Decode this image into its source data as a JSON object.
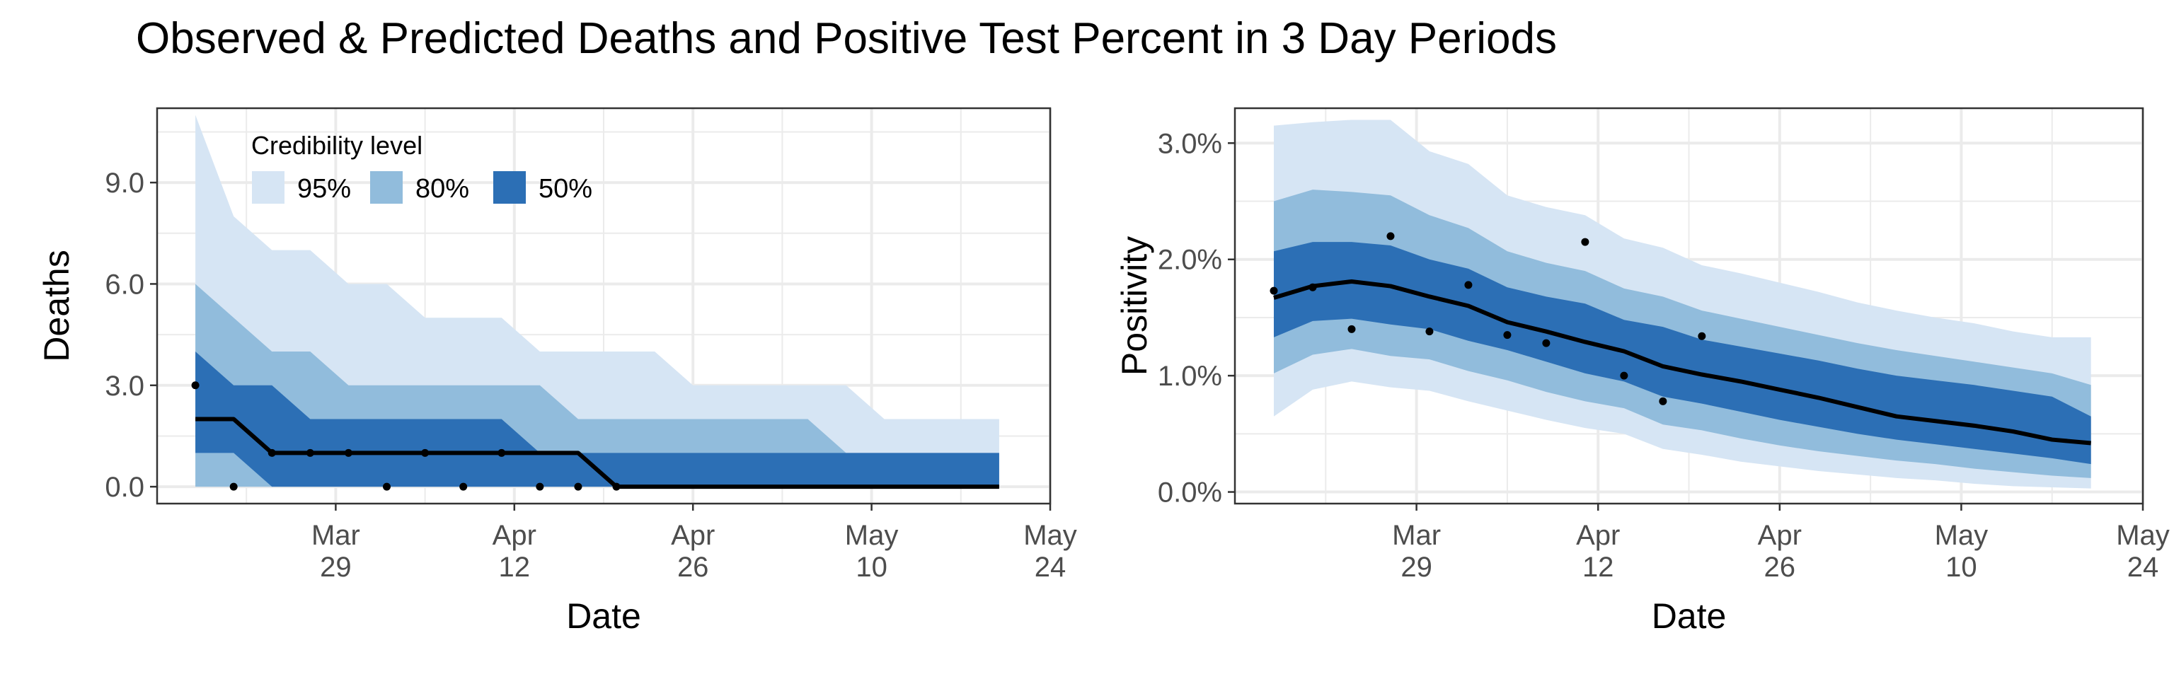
{
  "title": "Observed & Predicted Deaths and Positive Test Percent in 3 Day Periods",
  "colors": {
    "band95": "#d6e5f4",
    "band80": "#91bcdc",
    "band50": "#2c6fb5",
    "line": "#000000",
    "grid": "#ebebeb",
    "panel_border": "#333333"
  },
  "chart_data": [
    {
      "type": "area",
      "panel": "left",
      "xlabel": "Date",
      "ylabel": "Deaths",
      "xlim": [
        "2020-03-15",
        "2020-05-24"
      ],
      "ylim": [
        -0.5,
        11.2
      ],
      "grid": true,
      "x_ticks": [
        {
          "date": "2020-03-29",
          "line1": "Mar",
          "line2": "29"
        },
        {
          "date": "2020-04-12",
          "line1": "Apr",
          "line2": "12"
        },
        {
          "date": "2020-04-26",
          "line1": "Apr",
          "line2": "26"
        },
        {
          "date": "2020-05-10",
          "line1": "May",
          "line2": "10"
        },
        {
          "date": "2020-05-24",
          "line1": "May",
          "line2": "24"
        }
      ],
      "y_ticks": [
        {
          "value": 0,
          "label": "0.0"
        },
        {
          "value": 3,
          "label": "3.0"
        },
        {
          "value": 6,
          "label": "6.0"
        },
        {
          "value": 9,
          "label": "9.0"
        }
      ],
      "legend": {
        "title": "Credibility level",
        "placement": "top-left",
        "items": [
          {
            "label": "95%",
            "color": "#d6e5f4"
          },
          {
            "label": "80%",
            "color": "#91bcdc"
          },
          {
            "label": "50%",
            "color": "#2c6fb5"
          }
        ]
      },
      "x": [
        "2020-03-18",
        "2020-03-21",
        "2020-03-24",
        "2020-03-27",
        "2020-03-30",
        "2020-04-02",
        "2020-04-05",
        "2020-04-08",
        "2020-04-11",
        "2020-04-14",
        "2020-04-17",
        "2020-04-20",
        "2020-04-23",
        "2020-04-26",
        "2020-04-29",
        "2020-05-02",
        "2020-05-05",
        "2020-05-08",
        "2020-05-11",
        "2020-05-14",
        "2020-05-17",
        "2020-05-20"
      ],
      "bands": [
        {
          "level": "95%",
          "lower": [
            0,
            0,
            0,
            0,
            0,
            0,
            0,
            0,
            0,
            0,
            0,
            0,
            0,
            0,
            0,
            0,
            0,
            0,
            0,
            0,
            0,
            0
          ],
          "upper": [
            11,
            8,
            7,
            7,
            6,
            6,
            5,
            5,
            5,
            4,
            4,
            4,
            4,
            3,
            3,
            3,
            3,
            3,
            2,
            2,
            2,
            2
          ]
        },
        {
          "level": "80%",
          "lower": [
            0,
            0,
            0,
            0,
            0,
            0,
            0,
            0,
            0,
            0,
            0,
            0,
            0,
            0,
            0,
            0,
            0,
            0,
            0,
            0,
            0,
            0
          ],
          "upper": [
            6,
            5,
            4,
            4,
            3,
            3,
            3,
            3,
            3,
            3,
            2,
            2,
            2,
            2,
            2,
            2,
            2,
            1,
            1,
            1,
            1,
            1
          ]
        },
        {
          "level": "50%",
          "lower": [
            1,
            1,
            0,
            0,
            0,
            0,
            0,
            0,
            0,
            0,
            0,
            0,
            0,
            0,
            0,
            0,
            0,
            0,
            0,
            0,
            0,
            0
          ],
          "upper": [
            4,
            3,
            3,
            2,
            2,
            2,
            2,
            2,
            2,
            1,
            1,
            1,
            1,
            1,
            1,
            1,
            1,
            1,
            1,
            1,
            1,
            1
          ]
        }
      ],
      "median": [
        2,
        2,
        1,
        1,
        1,
        1,
        1,
        1,
        1,
        1,
        1,
        0,
        0,
        0,
        0,
        0,
        0,
        0,
        0,
        0,
        0,
        0
      ],
      "observed": [
        {
          "x": "2020-03-18",
          "y": 3
        },
        {
          "x": "2020-03-21",
          "y": 0
        },
        {
          "x": "2020-03-24",
          "y": 1
        },
        {
          "x": "2020-03-27",
          "y": 1
        },
        {
          "x": "2020-03-30",
          "y": 1
        },
        {
          "x": "2020-04-02",
          "y": 0
        },
        {
          "x": "2020-04-05",
          "y": 1
        },
        {
          "x": "2020-04-08",
          "y": 0
        },
        {
          "x": "2020-04-11",
          "y": 1
        },
        {
          "x": "2020-04-14",
          "y": 0
        },
        {
          "x": "2020-04-17",
          "y": 0
        },
        {
          "x": "2020-04-20",
          "y": 0
        }
      ]
    },
    {
      "type": "area",
      "panel": "right",
      "xlabel": "Date",
      "ylabel": "Positivity",
      "xlim": [
        "2020-03-15",
        "2020-05-24"
      ],
      "ylim": [
        -0.1,
        3.3
      ],
      "grid": true,
      "x_ticks": [
        {
          "date": "2020-03-29",
          "line1": "Mar",
          "line2": "29"
        },
        {
          "date": "2020-04-12",
          "line1": "Apr",
          "line2": "12"
        },
        {
          "date": "2020-04-26",
          "line1": "Apr",
          "line2": "26"
        },
        {
          "date": "2020-05-10",
          "line1": "May",
          "line2": "10"
        },
        {
          "date": "2020-05-24",
          "line1": "May",
          "line2": "24"
        }
      ],
      "y_ticks": [
        {
          "value": 0,
          "label": "0.0%"
        },
        {
          "value": 1,
          "label": "1.0%"
        },
        {
          "value": 2,
          "label": "2.0%"
        },
        {
          "value": 3,
          "label": "3.0%"
        }
      ],
      "x": [
        "2020-03-18",
        "2020-03-21",
        "2020-03-24",
        "2020-03-27",
        "2020-03-30",
        "2020-04-02",
        "2020-04-05",
        "2020-04-08",
        "2020-04-11",
        "2020-04-14",
        "2020-04-17",
        "2020-04-20",
        "2020-04-23",
        "2020-04-26",
        "2020-04-29",
        "2020-05-02",
        "2020-05-05",
        "2020-05-08",
        "2020-05-11",
        "2020-05-14",
        "2020-05-17",
        "2020-05-20"
      ],
      "bands": [
        {
          "level": "95%",
          "lower": [
            0.65,
            0.88,
            0.95,
            0.9,
            0.87,
            0.78,
            0.7,
            0.62,
            0.55,
            0.5,
            0.37,
            0.32,
            0.26,
            0.22,
            0.18,
            0.15,
            0.12,
            0.1,
            0.07,
            0.05,
            0.04,
            0.03
          ],
          "upper": [
            3.15,
            3.18,
            3.2,
            3.2,
            2.93,
            2.82,
            2.55,
            2.45,
            2.38,
            2.18,
            2.1,
            1.95,
            1.88,
            1.8,
            1.72,
            1.63,
            1.56,
            1.5,
            1.45,
            1.38,
            1.33,
            1.33
          ]
        },
        {
          "level": "80%",
          "lower": [
            1.02,
            1.18,
            1.23,
            1.17,
            1.14,
            1.04,
            0.96,
            0.86,
            0.78,
            0.72,
            0.58,
            0.53,
            0.46,
            0.4,
            0.35,
            0.31,
            0.27,
            0.24,
            0.2,
            0.17,
            0.14,
            0.12
          ],
          "upper": [
            2.5,
            2.6,
            2.58,
            2.55,
            2.38,
            2.27,
            2.07,
            1.97,
            1.9,
            1.75,
            1.68,
            1.56,
            1.49,
            1.42,
            1.35,
            1.28,
            1.22,
            1.17,
            1.12,
            1.07,
            1.02,
            0.92
          ]
        },
        {
          "level": "50%",
          "lower": [
            1.33,
            1.47,
            1.49,
            1.44,
            1.4,
            1.3,
            1.22,
            1.12,
            1.02,
            0.95,
            0.82,
            0.76,
            0.69,
            0.62,
            0.56,
            0.5,
            0.45,
            0.41,
            0.37,
            0.33,
            0.29,
            0.24
          ],
          "upper": [
            2.07,
            2.15,
            2.15,
            2.12,
            2.0,
            1.92,
            1.76,
            1.68,
            1.62,
            1.48,
            1.42,
            1.31,
            1.25,
            1.19,
            1.13,
            1.06,
            1.0,
            0.96,
            0.92,
            0.87,
            0.82,
            0.65
          ]
        },
        {
          "level": "median",
          "lower": [],
          "upper": []
        }
      ],
      "median": [
        1.67,
        1.77,
        1.81,
        1.77,
        1.68,
        1.6,
        1.46,
        1.38,
        1.29,
        1.21,
        1.08,
        1.01,
        0.95,
        0.88,
        0.81,
        0.73,
        0.65,
        0.61,
        0.57,
        0.52,
        0.45,
        0.42
      ],
      "observed": [
        {
          "x": "2020-03-18",
          "y": 1.73
        },
        {
          "x": "2020-03-21",
          "y": 1.76
        },
        {
          "x": "2020-03-24",
          "y": 1.4
        },
        {
          "x": "2020-03-27",
          "y": 2.2
        },
        {
          "x": "2020-03-30",
          "y": 1.38
        },
        {
          "x": "2020-04-02",
          "y": 1.78
        },
        {
          "x": "2020-04-05",
          "y": 1.35
        },
        {
          "x": "2020-04-08",
          "y": 1.28
        },
        {
          "x": "2020-04-11",
          "y": 2.15
        },
        {
          "x": "2020-04-14",
          "y": 1.0
        },
        {
          "x": "2020-04-17",
          "y": 0.78
        },
        {
          "x": "2020-04-20",
          "y": 1.34
        }
      ]
    }
  ]
}
